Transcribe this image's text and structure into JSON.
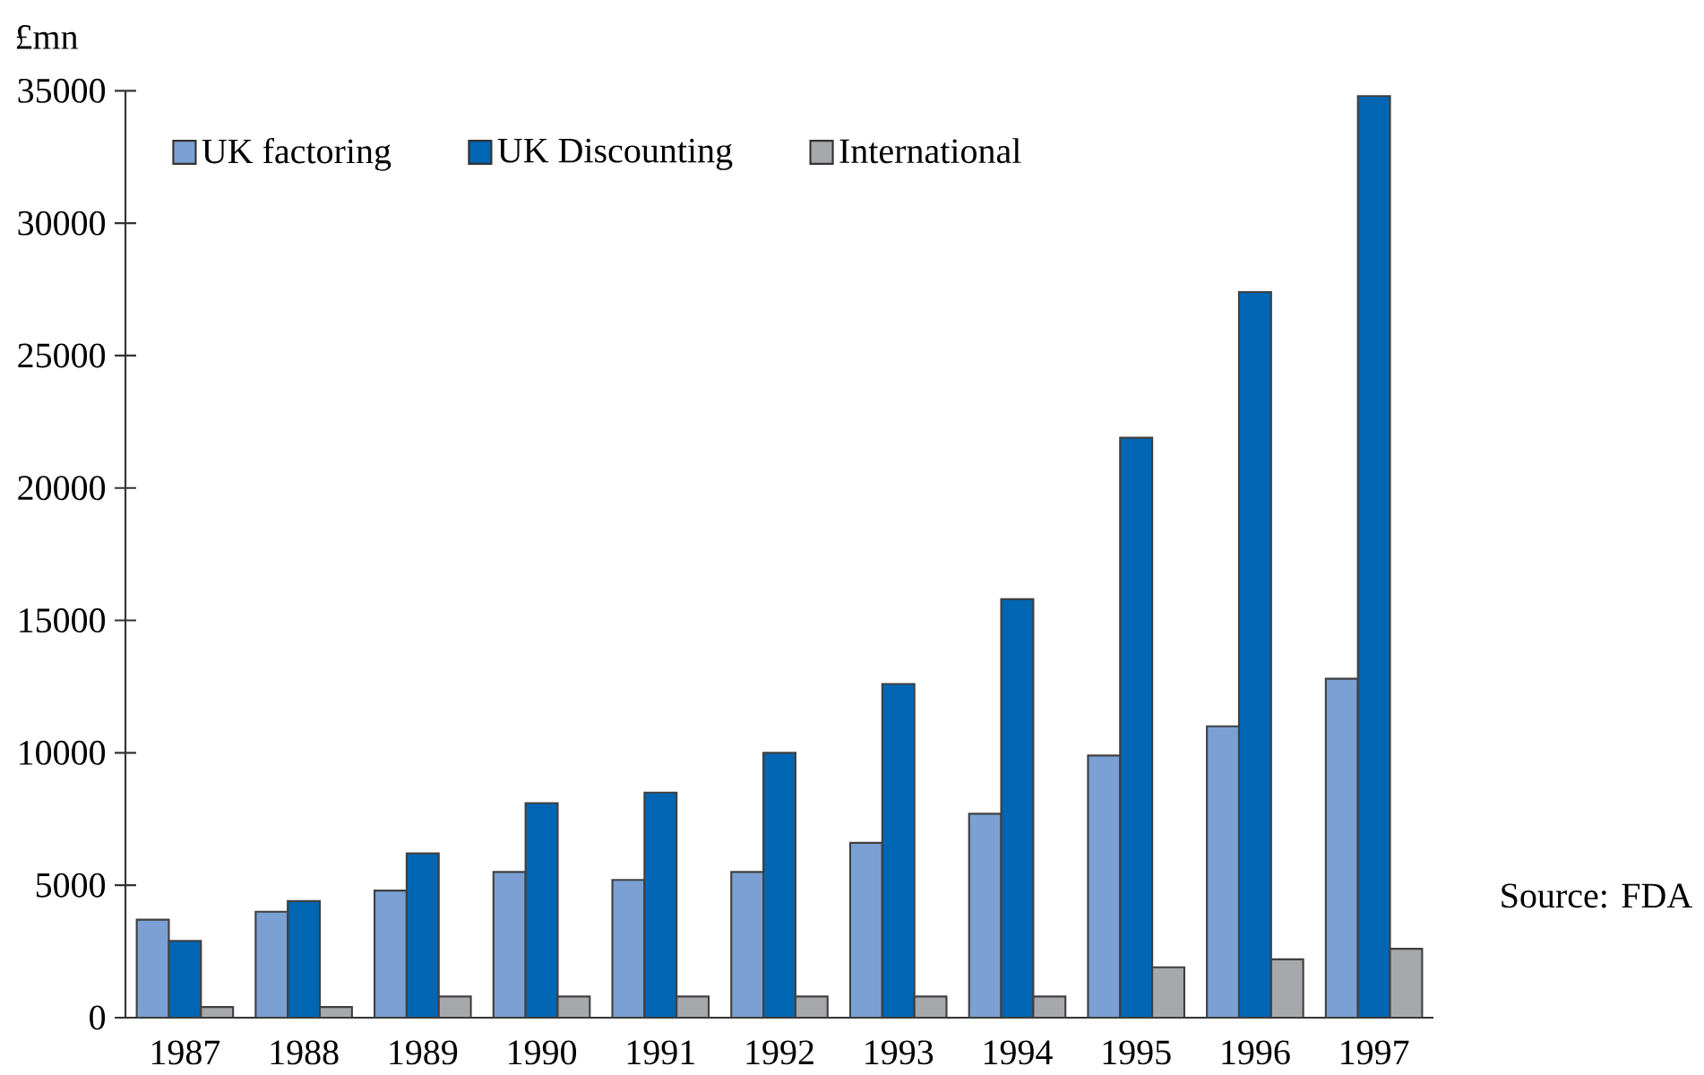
{
  "chart_data": {
    "type": "bar",
    "ylabel": "£mn",
    "categories": [
      "1987",
      "1988",
      "1989",
      "1990",
      "1991",
      "1992",
      "1993",
      "1994",
      "1995",
      "1996",
      "1997"
    ],
    "series": [
      {
        "name": "UK factoring",
        "color": "#7ba0d4",
        "values": [
          3700,
          4000,
          4800,
          5500,
          5200,
          5500,
          6600,
          7700,
          9900,
          11000,
          12800
        ]
      },
      {
        "name": "UK Discounting",
        "color": "#0066b3",
        "values": [
          2900,
          4400,
          6200,
          8100,
          8500,
          10000,
          12600,
          15800,
          21900,
          27400,
          34800
        ]
      },
      {
        "name": "International",
        "color": "#a6a8ab",
        "values": [
          400,
          400,
          800,
          800,
          800,
          800,
          800,
          800,
          1900,
          2200,
          2600
        ]
      }
    ],
    "ylim": [
      0,
      35000
    ],
    "yticks": [
      0,
      5000,
      10000,
      15000,
      20000,
      25000,
      30000,
      35000
    ],
    "legend": "top left",
    "annotations": [
      "Source:  FDA"
    ]
  }
}
